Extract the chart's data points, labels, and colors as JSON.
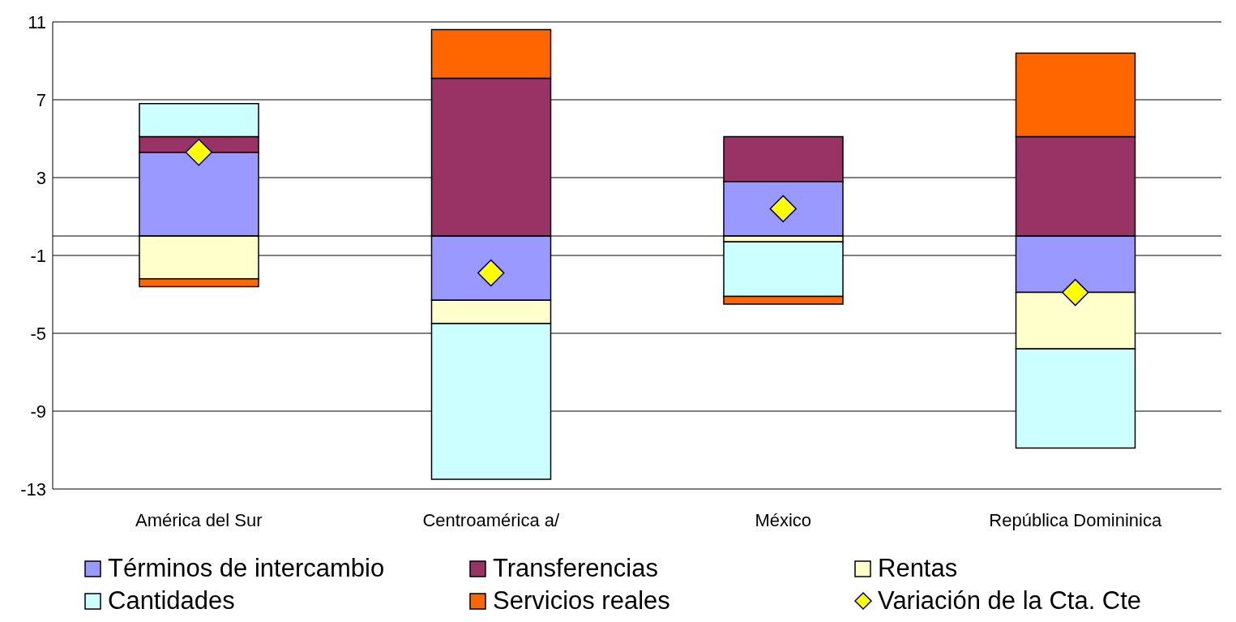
{
  "chart_data": {
    "type": "bar",
    "stacked": true,
    "categories": [
      "América del Sur",
      "Centroamérica a/",
      "México",
      "República Domininica"
    ],
    "series": [
      {
        "name": "Términos de intercambio",
        "color": "#9999ff",
        "values": [
          4.3,
          -3.3,
          2.8,
          -2.9
        ]
      },
      {
        "name": "Transferencias",
        "color": "#993366",
        "values": [
          0.8,
          8.1,
          2.3,
          5.1
        ]
      },
      {
        "name": "Rentas",
        "color": "#ffffcc",
        "values": [
          -2.2,
          -1.2,
          -0.3,
          -2.9
        ]
      },
      {
        "name": "Cantidades",
        "color": "#ccffff",
        "values": [
          1.7,
          -8.0,
          -2.8,
          -5.1
        ]
      },
      {
        "name": "Servicios reales",
        "color": "#ff6600",
        "values": [
          -0.4,
          2.5,
          -0.4,
          4.3
        ]
      },
      {
        "name": "Variación de la Cta. Cte",
        "type": "scatter",
        "marker": "diamond",
        "color": "#ffff00",
        "values": [
          4.3,
          -1.9,
          1.4,
          -2.9
        ]
      }
    ],
    "ylim": [
      -13,
      11
    ],
    "yticks": [
      -13,
      -9,
      -5,
      -1,
      3,
      7,
      11
    ],
    "grid": "y",
    "legend": "bottom"
  }
}
